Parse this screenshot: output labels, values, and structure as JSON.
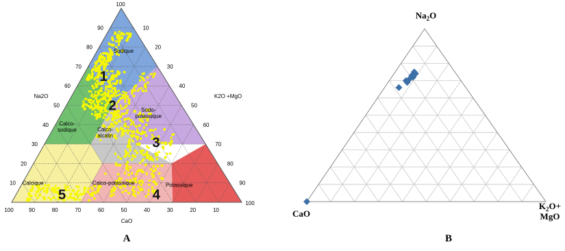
{
  "panel_a": {
    "label": "A",
    "apex_tick": "100",
    "left_ticks": [
      "90",
      "80",
      "70",
      "60",
      "50",
      "40",
      "30",
      "20",
      "10"
    ],
    "right_ticks": [
      "10",
      "20",
      "30",
      "40",
      "50",
      "60",
      "70",
      "80",
      "90"
    ],
    "bottom_ticks": [
      "100",
      "90",
      "80",
      "70",
      "60",
      "50",
      "40",
      "30",
      "20",
      "10"
    ],
    "right_corner_tick": "100",
    "axis_na2o": "Na2O",
    "axis_k2o": "K2O +MgO",
    "axis_cao": "CaO",
    "regions": [
      {
        "name": "Sodique",
        "color": "#7fa6dd"
      },
      {
        "name": "Calco-\nsodique",
        "color": "#70c070"
      },
      {
        "name": "Sodo-\npotassique",
        "color": "#c7a8e0"
      },
      {
        "name": "Calco-\nalcalin",
        "color": "#c8c8c8"
      },
      {
        "name": "Calcique",
        "color": "#f6f0a0"
      },
      {
        "name": "Calco-potassique",
        "color": "#f2b5b5"
      },
      {
        "name": "Potassique",
        "color": "#e75a5a"
      }
    ],
    "zone_numbers": [
      "1",
      "2",
      "3",
      "4",
      "5"
    ],
    "points_color": "#f7f700"
  },
  "panel_b": {
    "label": "B",
    "apex_label": {
      "main": "Na",
      "sub": "2",
      "tail": "O"
    },
    "left_label": "CaO",
    "right_label_line1": {
      "main": "K",
      "sub": "2",
      "tail": "O+"
    },
    "right_label_line2": "MgO",
    "marker_color": "#3d6fa8"
  },
  "chart_data": [
    {
      "type": "ternary",
      "components": [
        "Na2O",
        "K2O +MgO",
        "CaO"
      ],
      "ticks": [
        10,
        20,
        30,
        40,
        50,
        60,
        70,
        80,
        90,
        100
      ],
      "regions": [
        "Sodique",
        "Calco-sodique",
        "Sodo-potassique",
        "Calco-alcalin",
        "Calcique",
        "Calco-potassique",
        "Potassique"
      ],
      "zones": [
        "1",
        "2",
        "3",
        "4",
        "5"
      ]
    },
    {
      "type": "scatter",
      "components": [
        "Na2O",
        "K2O+MgO",
        "CaO"
      ],
      "grid": true,
      "series": [
        {
          "points": [
            {
              "Na2O": 75,
              "K2O+MgO": 8,
              "CaO": 17
            },
            {
              "Na2O": 74,
              "K2O+MgO": 9,
              "CaO": 17
            },
            {
              "Na2O": 73,
              "K2O+MgO": 8,
              "CaO": 19
            },
            {
              "Na2O": 72,
              "K2O+MgO": 9,
              "CaO": 19
            },
            {
              "Na2O": 71,
              "K2O+MgO": 8,
              "CaO": 21
            },
            {
              "Na2O": 70,
              "K2O+MgO": 7,
              "CaO": 23
            },
            {
              "Na2O": 69,
              "K2O+MgO": 8,
              "CaO": 23
            },
            {
              "Na2O": 66,
              "K2O+MgO": 6,
              "CaO": 28
            },
            {
              "Na2O": 0,
              "K2O+MgO": 0,
              "CaO": 100
            }
          ]
        }
      ]
    }
  ]
}
